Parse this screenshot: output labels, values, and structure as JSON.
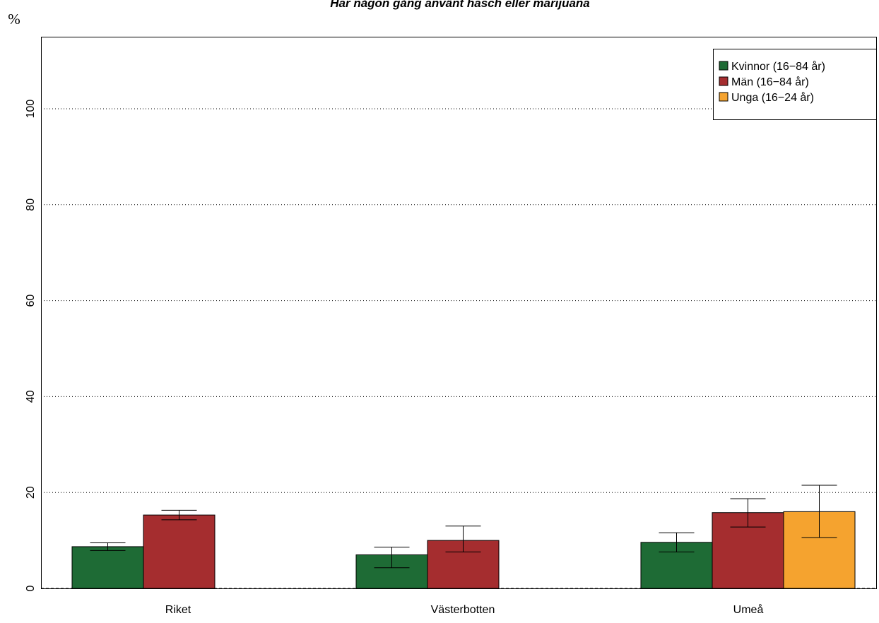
{
  "chart_data": {
    "type": "bar",
    "title": "Har någon gång använt hasch eller marijuana",
    "ylabel": "%",
    "xlabel": "",
    "ylim": [
      0,
      100
    ],
    "yticks": [
      "0",
      "20",
      "40",
      "60",
      "80",
      "100"
    ],
    "grid": "horizontal dotted",
    "legend_position": "top-right",
    "categories": [
      "Riket",
      "Västerbotten",
      "Umeå"
    ],
    "series": [
      {
        "name": "Kvinnor (16−84 år)",
        "color": "#1e6b35",
        "values": [
          8.7,
          7.0,
          9.6
        ],
        "ci_low": [
          7.9,
          4.3,
          7.6
        ],
        "ci_high": [
          9.5,
          8.6,
          11.6
        ]
      },
      {
        "name": "Män (16−84 år)",
        "color": "#a52d2f",
        "values": [
          15.3,
          10.0,
          15.8
        ],
        "ci_low": [
          14.3,
          7.6,
          12.8
        ],
        "ci_high": [
          16.3,
          13.0,
          18.7
        ]
      },
      {
        "name": "Unga (16−24 år)",
        "color": "#f5a32f",
        "values": [
          null,
          null,
          16.0
        ],
        "ci_low": [
          null,
          null,
          10.6
        ],
        "ci_high": [
          null,
          null,
          21.5
        ]
      }
    ]
  }
}
